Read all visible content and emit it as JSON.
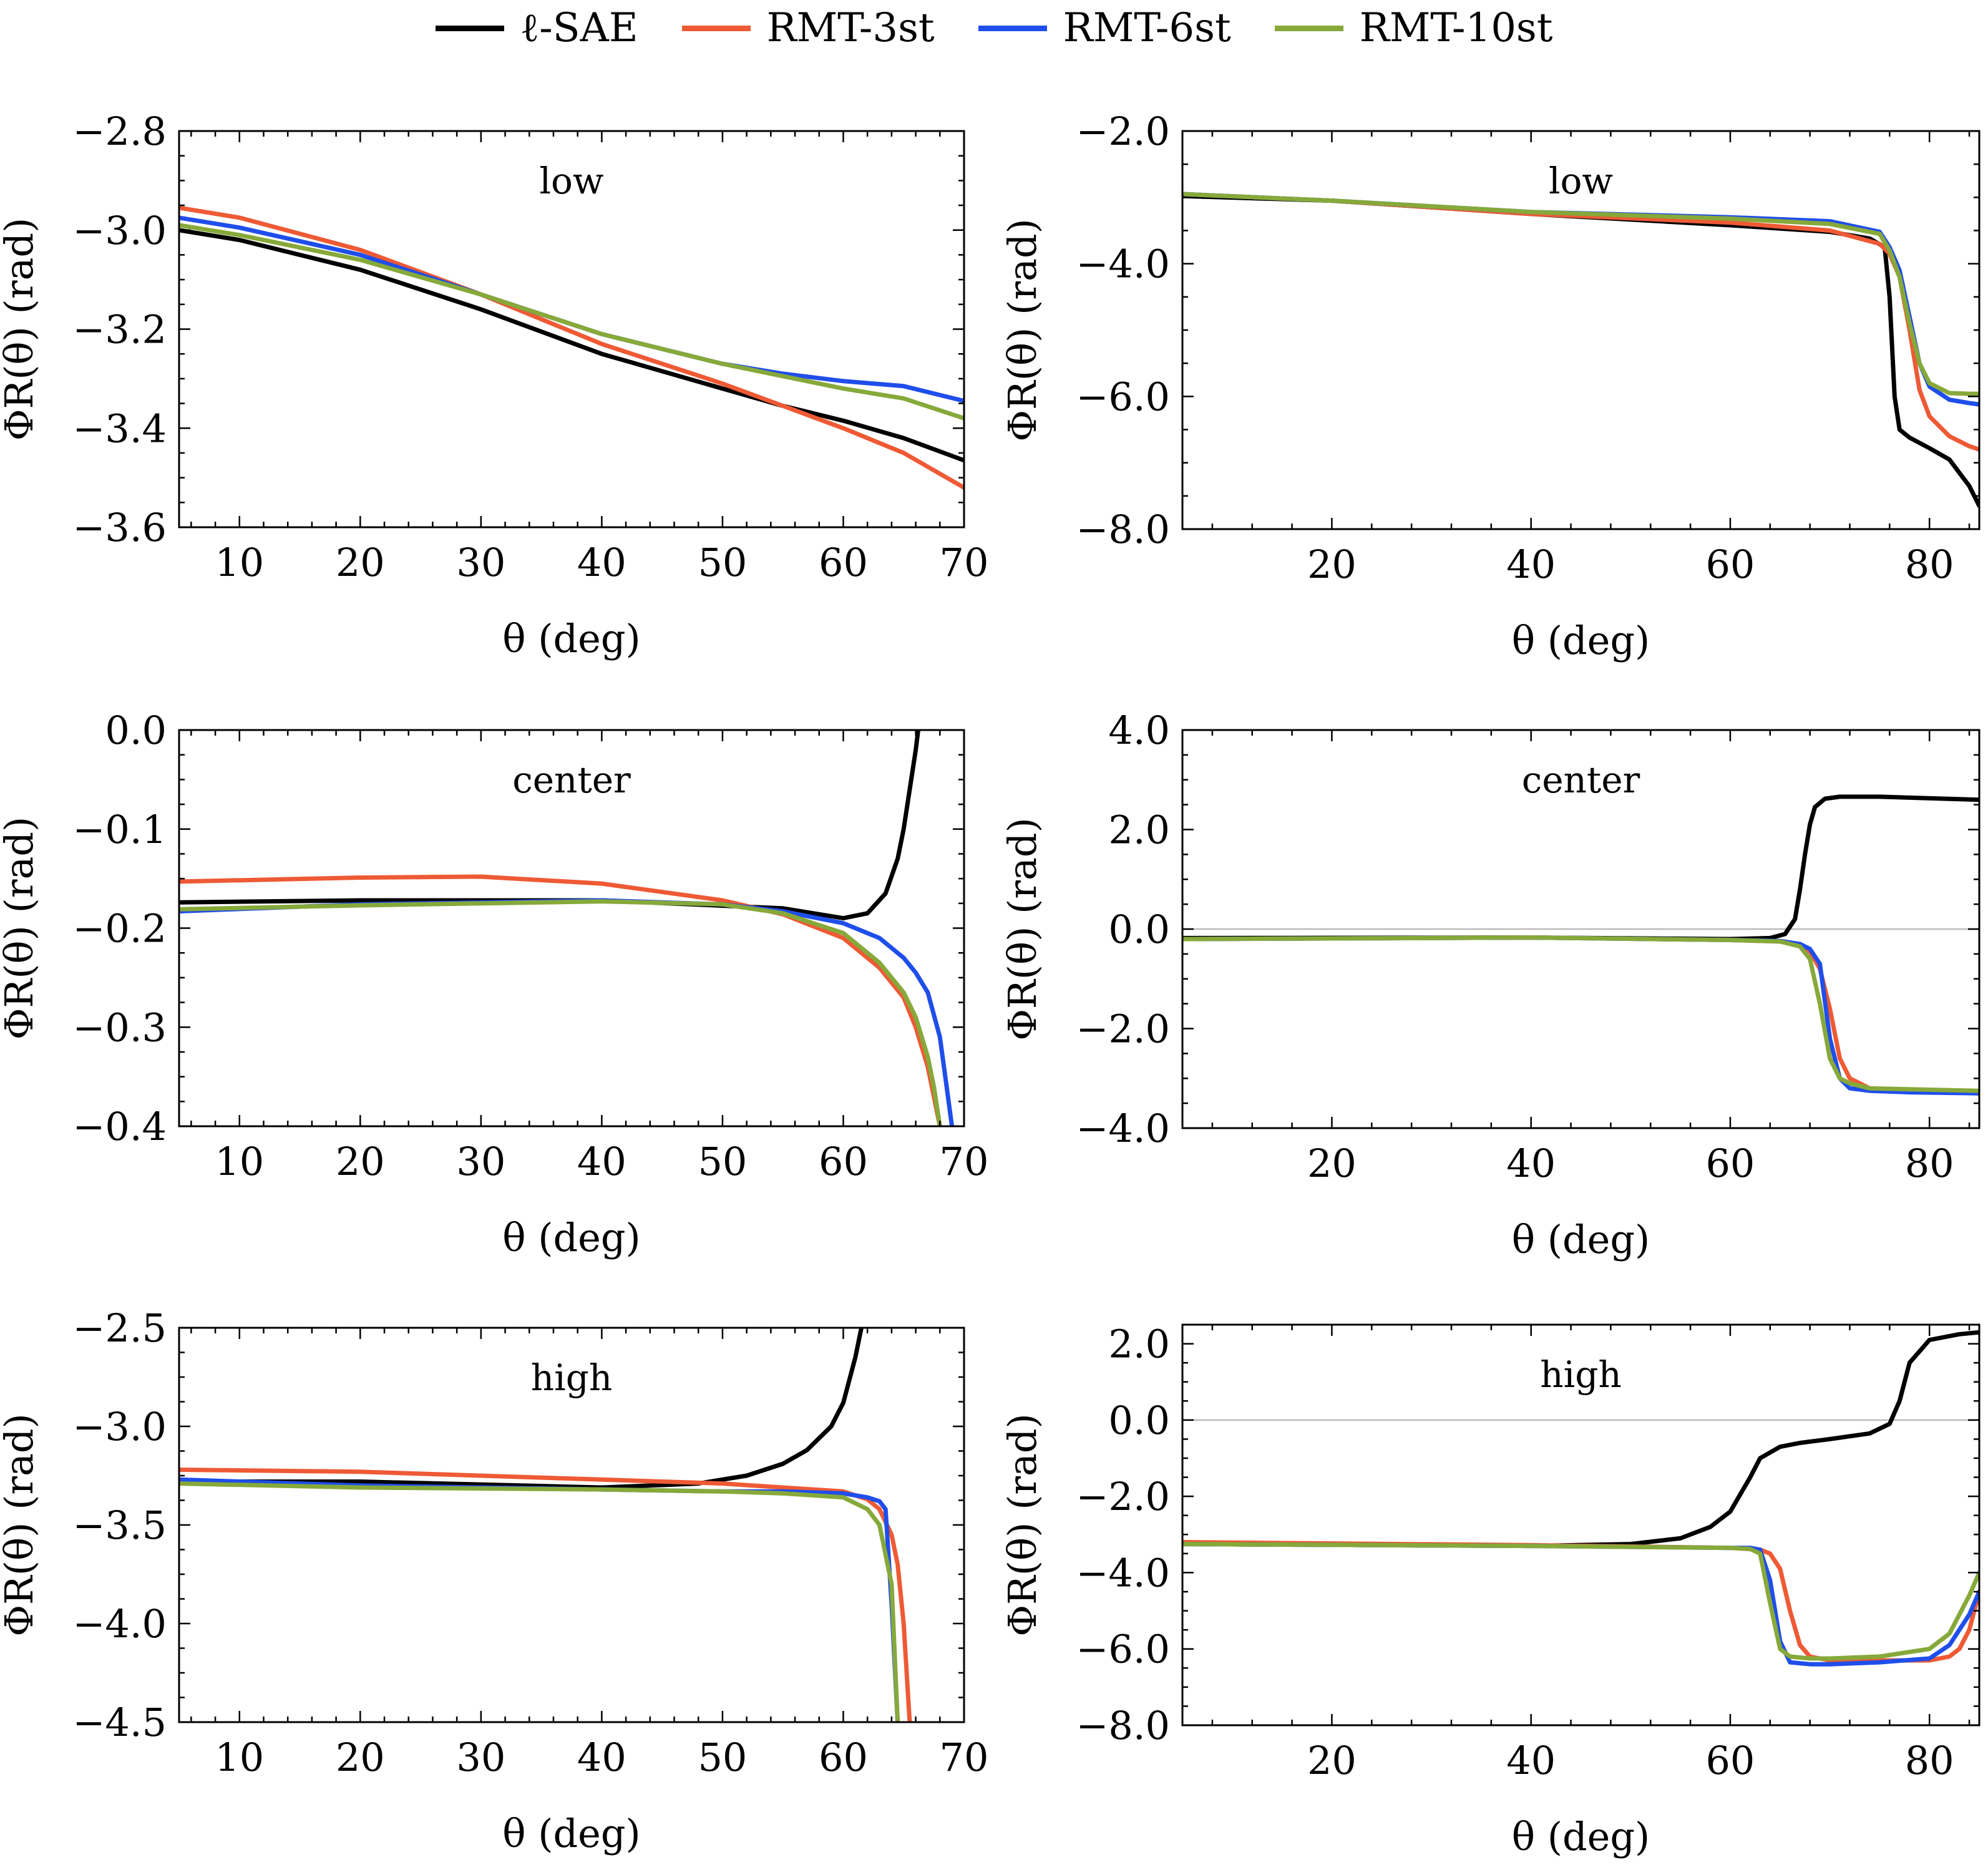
{
  "legend": [
    {
      "name": "ℓ-SAE",
      "color": "#000000"
    },
    {
      "name": "RMT-3st",
      "color": "#ee5a35"
    },
    {
      "name": "RMT-6st",
      "color": "#1f4eea"
    },
    {
      "name": "RMT-10st",
      "color": "#86a93a"
    }
  ],
  "chart_data": [
    {
      "type": "line",
      "title": "low",
      "xlabel": "θ (deg)",
      "ylabel": "ΦR(θ) (rad)",
      "xlim": [
        5,
        70
      ],
      "ylim": [
        -3.6,
        -2.8
      ],
      "xticks": [
        10,
        20,
        30,
        40,
        50,
        60,
        70
      ],
      "xtick_labels": [
        "10",
        "20",
        "30",
        "40",
        "50",
        "60",
        "70"
      ],
      "yticks": [
        -3.6,
        -3.4,
        -3.2,
        -3.0,
        -2.8
      ],
      "ytick_labels": [
        "−3.6",
        "−3.4",
        "−3.2",
        "−3.0",
        "−2.8"
      ],
      "zero_line": false,
      "series": [
        {
          "name": "ℓ-SAE",
          "x": [
            5,
            10,
            20,
            30,
            40,
            50,
            55,
            60,
            65,
            70
          ],
          "y": [
            -3.0,
            -3.02,
            -3.08,
            -3.16,
            -3.25,
            -3.32,
            -3.355,
            -3.385,
            -3.42,
            -3.465
          ]
        },
        {
          "name": "RMT-3st",
          "x": [
            5,
            10,
            20,
            30,
            40,
            50,
            55,
            60,
            65,
            70
          ],
          "y": [
            -2.955,
            -2.975,
            -3.04,
            -3.13,
            -3.23,
            -3.31,
            -3.355,
            -3.4,
            -3.45,
            -3.52
          ]
        },
        {
          "name": "RMT-6st",
          "x": [
            5,
            10,
            20,
            30,
            40,
            50,
            55,
            60,
            65,
            70
          ],
          "y": [
            -2.975,
            -2.995,
            -3.05,
            -3.13,
            -3.21,
            -3.27,
            -3.29,
            -3.305,
            -3.315,
            -3.345
          ]
        },
        {
          "name": "RMT-10st",
          "x": [
            5,
            10,
            20,
            30,
            40,
            50,
            55,
            60,
            65,
            70
          ],
          "y": [
            -2.99,
            -3.01,
            -3.06,
            -3.13,
            -3.21,
            -3.27,
            -3.295,
            -3.32,
            -3.34,
            -3.38
          ]
        }
      ]
    },
    {
      "type": "line",
      "title": "low",
      "xlabel": "θ (deg)",
      "ylabel": "ΦR(θ) (rad)",
      "xlim": [
        5,
        85
      ],
      "ylim": [
        -8.0,
        -2.0
      ],
      "xticks": [
        20,
        40,
        60,
        80
      ],
      "xtick_labels": [
        "20",
        "40",
        "60",
        "80"
      ],
      "yticks": [
        -8.0,
        -6.0,
        -4.0,
        -2.0
      ],
      "ytick_labels": [
        "−8.0",
        "−6.0",
        "−4.0",
        "−2.0"
      ],
      "zero_line": false,
      "series": [
        {
          "name": "ℓ-SAE",
          "x": [
            5,
            20,
            40,
            60,
            70,
            74,
            75.5,
            76,
            76.5,
            77,
            78,
            80,
            82,
            84,
            85
          ],
          "y": [
            -2.98,
            -3.05,
            -3.25,
            -3.42,
            -3.52,
            -3.62,
            -3.75,
            -4.5,
            -6.0,
            -6.5,
            -6.62,
            -6.78,
            -6.95,
            -7.35,
            -7.65
          ]
        },
        {
          "name": "RMT-3st",
          "x": [
            5,
            20,
            40,
            60,
            70,
            75,
            76,
            77,
            78,
            79,
            80,
            82,
            84,
            85
          ],
          "y": [
            -2.95,
            -3.05,
            -3.25,
            -3.38,
            -3.5,
            -3.7,
            -3.85,
            -4.2,
            -5.0,
            -5.9,
            -6.3,
            -6.6,
            -6.75,
            -6.8
          ]
        },
        {
          "name": "RMT-6st",
          "x": [
            5,
            20,
            40,
            60,
            70,
            75,
            76,
            77,
            78,
            79,
            80,
            82,
            84,
            85
          ],
          "y": [
            -2.95,
            -3.05,
            -3.22,
            -3.3,
            -3.36,
            -3.52,
            -3.75,
            -4.1,
            -4.8,
            -5.5,
            -5.85,
            -6.05,
            -6.1,
            -6.12
          ]
        },
        {
          "name": "RMT-10st",
          "x": [
            5,
            20,
            40,
            60,
            70,
            75,
            76,
            77,
            78,
            79,
            80,
            82,
            84,
            85
          ],
          "y": [
            -2.95,
            -3.05,
            -3.22,
            -3.32,
            -3.4,
            -3.55,
            -3.8,
            -4.2,
            -4.9,
            -5.5,
            -5.8,
            -5.95,
            -5.96,
            -5.96
          ]
        }
      ]
    },
    {
      "type": "line",
      "title": "center",
      "xlabel": "θ (deg)",
      "ylabel": "ΦR(θ) (rad)",
      "xlim": [
        5,
        70
      ],
      "ylim": [
        -0.4,
        0.0
      ],
      "xticks": [
        10,
        20,
        30,
        40,
        50,
        60,
        70
      ],
      "xtick_labels": [
        "10",
        "20",
        "30",
        "40",
        "50",
        "60",
        "70"
      ],
      "yticks": [
        -0.4,
        -0.3,
        -0.2,
        -0.1,
        0.0
      ],
      "ytick_labels": [
        "−0.4",
        "−0.3",
        "−0.2",
        "−0.1",
        "0.0"
      ],
      "zero_line": false,
      "series": [
        {
          "name": "ℓ-SAE",
          "x": [
            5,
            20,
            40,
            55,
            60,
            62,
            63.5,
            64.5,
            65,
            65.5,
            66,
            66.2
          ],
          "y": [
            -0.174,
            -0.172,
            -0.172,
            -0.18,
            -0.19,
            -0.185,
            -0.165,
            -0.13,
            -0.1,
            -0.06,
            -0.02,
            0.0
          ]
        },
        {
          "name": "RMT-3st",
          "x": [
            5,
            20,
            30,
            40,
            50,
            55,
            60,
            63,
            65,
            66,
            67,
            67.5,
            68
          ],
          "y": [
            -0.153,
            -0.149,
            -0.148,
            -0.155,
            -0.172,
            -0.186,
            -0.21,
            -0.24,
            -0.27,
            -0.3,
            -0.34,
            -0.37,
            -0.4
          ]
        },
        {
          "name": "RMT-6st",
          "x": [
            5,
            20,
            40,
            50,
            55,
            60,
            63,
            65,
            66,
            67,
            68,
            68.5,
            69
          ],
          "y": [
            -0.183,
            -0.176,
            -0.172,
            -0.176,
            -0.183,
            -0.195,
            -0.21,
            -0.23,
            -0.245,
            -0.265,
            -0.31,
            -0.355,
            -0.4
          ]
        },
        {
          "name": "RMT-10st",
          "x": [
            5,
            20,
            40,
            50,
            55,
            60,
            63,
            65,
            66,
            67,
            67.5,
            68
          ],
          "y": [
            -0.181,
            -0.177,
            -0.173,
            -0.176,
            -0.185,
            -0.205,
            -0.235,
            -0.265,
            -0.29,
            -0.33,
            -0.36,
            -0.4
          ]
        }
      ]
    },
    {
      "type": "line",
      "title": "center",
      "xlabel": "θ (deg)",
      "ylabel": "ΦR(θ) (rad)",
      "xlim": [
        5,
        85
      ],
      "ylim": [
        -4.0,
        4.0
      ],
      "xticks": [
        20,
        40,
        60,
        80
      ],
      "xtick_labels": [
        "20",
        "40",
        "60",
        "80"
      ],
      "yticks": [
        -4.0,
        -2.0,
        0.0,
        2.0,
        4.0
      ],
      "ytick_labels": [
        "−4.0",
        "−2.0",
        "0.0",
        "2.0",
        "4.0"
      ],
      "zero_line": true,
      "series": [
        {
          "name": "ℓ-SAE",
          "x": [
            5,
            40,
            60,
            64,
            65.5,
            66.5,
            67,
            67.5,
            68,
            68.5,
            69.5,
            71,
            75,
            85
          ],
          "y": [
            -0.18,
            -0.17,
            -0.2,
            -0.18,
            -0.1,
            0.2,
            0.8,
            1.5,
            2.1,
            2.45,
            2.62,
            2.66,
            2.66,
            2.6
          ]
        },
        {
          "name": "RMT-3st",
          "x": [
            5,
            40,
            60,
            65,
            67,
            68,
            69,
            70,
            71,
            72,
            74,
            78,
            85
          ],
          "y": [
            -0.2,
            -0.17,
            -0.22,
            -0.25,
            -0.32,
            -0.45,
            -0.8,
            -1.6,
            -2.6,
            -3.0,
            -3.2,
            -3.25,
            -3.3
          ]
        },
        {
          "name": "RMT-6st",
          "x": [
            5,
            40,
            60,
            65,
            67,
            68,
            69,
            70,
            71,
            72,
            74,
            78,
            85
          ],
          "y": [
            -0.2,
            -0.17,
            -0.22,
            -0.24,
            -0.3,
            -0.4,
            -0.7,
            -2.2,
            -3.0,
            -3.2,
            -3.25,
            -3.28,
            -3.3
          ]
        },
        {
          "name": "RMT-10st",
          "x": [
            5,
            40,
            60,
            65,
            67,
            68,
            69,
            70,
            71,
            72,
            74,
            78,
            85
          ],
          "y": [
            -0.2,
            -0.17,
            -0.22,
            -0.25,
            -0.35,
            -0.6,
            -1.5,
            -2.6,
            -3.0,
            -3.1,
            -3.2,
            -3.22,
            -3.25
          ]
        }
      ]
    },
    {
      "type": "line",
      "title": "high",
      "xlabel": "θ (deg)",
      "ylabel": "ΦR(θ) (rad)",
      "xlim": [
        5,
        70
      ],
      "ylim": [
        -4.5,
        -2.5
      ],
      "xticks": [
        10,
        20,
        30,
        40,
        50,
        60,
        70
      ],
      "xtick_labels": [
        "10",
        "20",
        "30",
        "40",
        "50",
        "60",
        "70"
      ],
      "yticks": [
        -4.5,
        -4.0,
        -3.5,
        -3.0,
        -2.5
      ],
      "ytick_labels": [
        "−4.5",
        "−4.0",
        "−3.5",
        "−3.0",
        "−2.5"
      ],
      "zero_line": false,
      "series": [
        {
          "name": "ℓ-SAE",
          "x": [
            5,
            20,
            40,
            48,
            52,
            55,
            57,
            59,
            60,
            61,
            61.5
          ],
          "y": [
            -3.28,
            -3.28,
            -3.31,
            -3.29,
            -3.25,
            -3.19,
            -3.12,
            -3.0,
            -2.88,
            -2.65,
            -2.5
          ]
        },
        {
          "name": "RMT-3st",
          "x": [
            5,
            20,
            40,
            50,
            55,
            60,
            62,
            63,
            64,
            64.5,
            65,
            65.5
          ],
          "y": [
            -3.22,
            -3.23,
            -3.27,
            -3.29,
            -3.31,
            -3.33,
            -3.37,
            -3.42,
            -3.55,
            -3.7,
            -4.0,
            -4.5
          ]
        },
        {
          "name": "RMT-6st",
          "x": [
            5,
            20,
            40,
            50,
            55,
            60,
            62,
            63,
            63.5,
            64,
            64.5
          ],
          "y": [
            -3.27,
            -3.3,
            -3.32,
            -3.33,
            -3.33,
            -3.34,
            -3.36,
            -3.38,
            -3.42,
            -3.9,
            -4.5
          ]
        },
        {
          "name": "RMT-10st",
          "x": [
            5,
            20,
            40,
            50,
            55,
            60,
            62,
            63,
            64,
            64.5
          ],
          "y": [
            -3.29,
            -3.31,
            -3.32,
            -3.33,
            -3.34,
            -3.36,
            -3.42,
            -3.5,
            -3.8,
            -4.5
          ]
        }
      ]
    },
    {
      "type": "line",
      "title": "high",
      "xlabel": "θ (deg)",
      "ylabel": "ΦR(θ) (rad)",
      "xlim": [
        5,
        85
      ],
      "ylim": [
        -8.0,
        2.5
      ],
      "xticks": [
        20,
        40,
        60,
        80
      ],
      "xtick_labels": [
        "20",
        "40",
        "60",
        "80"
      ],
      "yticks": [
        -8.0,
        -6.0,
        -4.0,
        -2.0,
        0.0,
        2.0
      ],
      "ytick_labels": [
        "−8.0",
        "−6.0",
        "−4.0",
        "−2.0",
        "0.0",
        "2.0"
      ],
      "zero_line": true,
      "series": [
        {
          "name": "ℓ-SAE",
          "x": [
            5,
            40,
            50,
            55,
            58,
            60,
            62,
            63,
            65,
            67,
            70,
            74,
            76,
            77,
            78,
            80,
            83,
            85
          ],
          "y": [
            -3.25,
            -3.3,
            -3.25,
            -3.1,
            -2.8,
            -2.4,
            -1.5,
            -1.0,
            -0.7,
            -0.6,
            -0.5,
            -0.35,
            -0.1,
            0.5,
            1.5,
            2.1,
            2.25,
            2.3
          ]
        },
        {
          "name": "RMT-3st",
          "x": [
            5,
            40,
            60,
            63,
            64,
            65,
            66,
            67,
            68,
            70,
            75,
            80,
            82,
            83,
            84,
            85
          ],
          "y": [
            -3.2,
            -3.28,
            -3.35,
            -3.4,
            -3.5,
            -3.9,
            -5.0,
            -5.9,
            -6.2,
            -6.3,
            -6.3,
            -6.3,
            -6.2,
            -6.0,
            -5.5,
            -4.5
          ]
        },
        {
          "name": "RMT-6st",
          "x": [
            5,
            40,
            60,
            62,
            63,
            64,
            65,
            66,
            68,
            70,
            75,
            80,
            82,
            84,
            85
          ],
          "y": [
            -3.25,
            -3.3,
            -3.35,
            -3.35,
            -3.4,
            -4.2,
            -5.8,
            -6.35,
            -6.4,
            -6.4,
            -6.35,
            -6.25,
            -5.9,
            -5.1,
            -4.5
          ]
        },
        {
          "name": "RMT-10st",
          "x": [
            5,
            40,
            60,
            62,
            63,
            64,
            65,
            66,
            68,
            70,
            75,
            80,
            82,
            84,
            85
          ],
          "y": [
            -3.25,
            -3.3,
            -3.35,
            -3.38,
            -3.5,
            -4.8,
            -6.0,
            -6.2,
            -6.25,
            -6.25,
            -6.2,
            -6.0,
            -5.6,
            -4.6,
            -4.0
          ]
        }
      ]
    }
  ]
}
